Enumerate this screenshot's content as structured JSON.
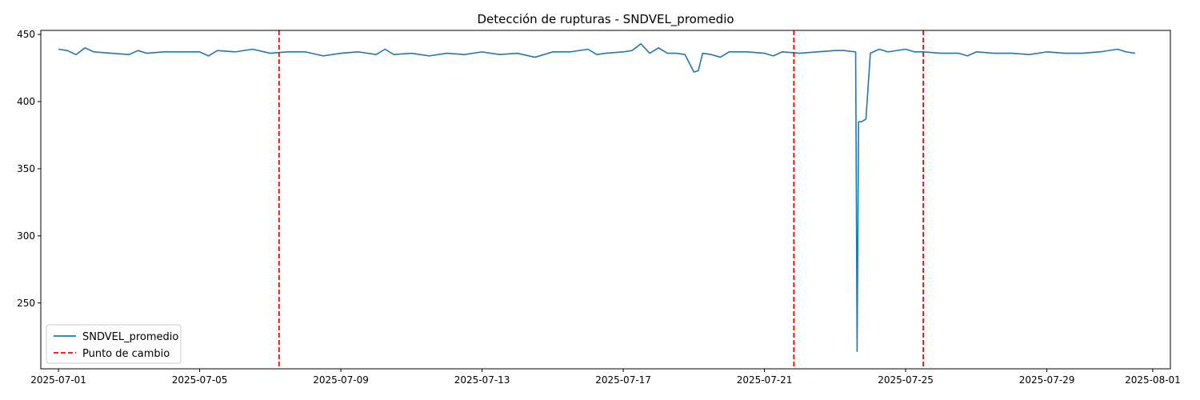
{
  "chart_data": {
    "type": "line",
    "title": "Detección de rupturas - SNDVEL_promedio",
    "xlabel": "",
    "ylabel": "",
    "x_range": [
      "2025-06-30T12:00",
      "2025-08-01T12:00"
    ],
    "ylim": [
      201,
      453
    ],
    "x_ticks": [
      "2025-07-01",
      "2025-07-05",
      "2025-07-09",
      "2025-07-13",
      "2025-07-17",
      "2025-07-21",
      "2025-07-25",
      "2025-07-29",
      "2025-08-01"
    ],
    "y_ticks": [
      250,
      300,
      350,
      400,
      450
    ],
    "grid": false,
    "legend_position": "lower-left",
    "series": [
      {
        "name": "SNDVEL_promedio",
        "color": "#1f77b4",
        "points": [
          [
            "2025-07-01T00:00",
            439
          ],
          [
            "2025-07-01T06:00",
            438
          ],
          [
            "2025-07-01T12:00",
            435
          ],
          [
            "2025-07-01T18:00",
            440
          ],
          [
            "2025-07-02T00:00",
            437
          ],
          [
            "2025-07-02T12:00",
            436
          ],
          [
            "2025-07-03T00:00",
            435
          ],
          [
            "2025-07-03T06:00",
            438
          ],
          [
            "2025-07-03T12:00",
            436
          ],
          [
            "2025-07-04T00:00",
            437
          ],
          [
            "2025-07-04T12:00",
            437
          ],
          [
            "2025-07-05T00:00",
            437
          ],
          [
            "2025-07-05T06:00",
            434
          ],
          [
            "2025-07-05T12:00",
            438
          ],
          [
            "2025-07-06T00:00",
            437
          ],
          [
            "2025-07-06T12:00",
            439
          ],
          [
            "2025-07-07T00:00",
            436
          ],
          [
            "2025-07-07T12:00",
            437
          ],
          [
            "2025-07-08T00:00",
            437
          ],
          [
            "2025-07-08T12:00",
            434
          ],
          [
            "2025-07-09T00:00",
            436
          ],
          [
            "2025-07-09T12:00",
            437
          ],
          [
            "2025-07-10T00:00",
            435
          ],
          [
            "2025-07-10T06:00",
            439
          ],
          [
            "2025-07-10T12:00",
            435
          ],
          [
            "2025-07-11T00:00",
            436
          ],
          [
            "2025-07-11T12:00",
            434
          ],
          [
            "2025-07-12T00:00",
            436
          ],
          [
            "2025-07-12T12:00",
            435
          ],
          [
            "2025-07-13T00:00",
            437
          ],
          [
            "2025-07-13T12:00",
            435
          ],
          [
            "2025-07-14T00:00",
            436
          ],
          [
            "2025-07-14T12:00",
            433
          ],
          [
            "2025-07-15T00:00",
            437
          ],
          [
            "2025-07-15T12:00",
            437
          ],
          [
            "2025-07-16T00:00",
            439
          ],
          [
            "2025-07-16T06:00",
            435
          ],
          [
            "2025-07-16T12:00",
            436
          ],
          [
            "2025-07-17T00:00",
            437
          ],
          [
            "2025-07-17T06:00",
            438
          ],
          [
            "2025-07-17T12:00",
            443
          ],
          [
            "2025-07-17T18:00",
            436
          ],
          [
            "2025-07-18T00:00",
            440
          ],
          [
            "2025-07-18T06:00",
            436
          ],
          [
            "2025-07-18T12:00",
            436
          ],
          [
            "2025-07-18T18:00",
            435
          ],
          [
            "2025-07-19T00:00",
            422
          ],
          [
            "2025-07-19T03:00",
            423
          ],
          [
            "2025-07-19T06:00",
            436
          ],
          [
            "2025-07-19T12:00",
            435
          ],
          [
            "2025-07-19T18:00",
            433
          ],
          [
            "2025-07-20T00:00",
            437
          ],
          [
            "2025-07-20T12:00",
            437
          ],
          [
            "2025-07-21T00:00",
            436
          ],
          [
            "2025-07-21T06:00",
            434
          ],
          [
            "2025-07-21T12:00",
            437
          ],
          [
            "2025-07-22T00:00",
            436
          ],
          [
            "2025-07-22T12:00",
            437
          ],
          [
            "2025-07-23T00:00",
            438
          ],
          [
            "2025-07-23T06:00",
            438
          ],
          [
            "2025-07-23T14:00",
            437
          ],
          [
            "2025-07-23T15:00",
            214
          ],
          [
            "2025-07-23T16:00",
            385
          ],
          [
            "2025-07-23T18:00",
            385
          ],
          [
            "2025-07-23T21:00",
            387
          ],
          [
            "2025-07-24T00:00",
            436
          ],
          [
            "2025-07-24T06:00",
            439
          ],
          [
            "2025-07-24T12:00",
            437
          ],
          [
            "2025-07-25T00:00",
            439
          ],
          [
            "2025-07-25T06:00",
            437
          ],
          [
            "2025-07-25T12:00",
            437
          ],
          [
            "2025-07-26T00:00",
            436
          ],
          [
            "2025-07-26T12:00",
            436
          ],
          [
            "2025-07-26T18:00",
            434
          ],
          [
            "2025-07-27T00:00",
            437
          ],
          [
            "2025-07-27T12:00",
            436
          ],
          [
            "2025-07-28T00:00",
            436
          ],
          [
            "2025-07-28T12:00",
            435
          ],
          [
            "2025-07-29T00:00",
            437
          ],
          [
            "2025-07-29T12:00",
            436
          ],
          [
            "2025-07-30T00:00",
            436
          ],
          [
            "2025-07-30T12:00",
            437
          ],
          [
            "2025-07-31T00:00",
            439
          ],
          [
            "2025-07-31T06:00",
            437
          ],
          [
            "2025-07-31T12:00",
            436
          ]
        ]
      }
    ],
    "change_points": {
      "name": "Punto de cambio",
      "color": "#ff0000",
      "style": "dashed",
      "dates": [
        "2025-07-07T06:00",
        "2025-07-21T20:00",
        "2025-07-25T12:00"
      ]
    }
  }
}
